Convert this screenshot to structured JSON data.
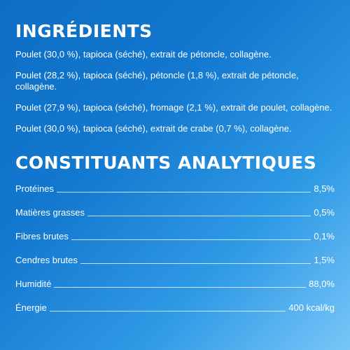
{
  "ingredients_title": "INGRÉDIENTS",
  "ingredients": [
    "Poulet (30,0 %), tapioca (séché), extrait de pétoncle, collagène.",
    "Poulet (28,2 %), tapioca (séché), pétoncle (1,8 %), extrait de pétoncle, collagène.",
    "Poulet (27,9 %), tapioca (séché), fromage (2,1 %), extrait de poulet, collagène.",
    "Poulet (30,0 %), tapioca (séché), extrait de crabe (0,7 %), collagène."
  ],
  "constituents_title": "CONSTITUANTS ANALYTIQUES",
  "constituents": [
    {
      "label": "Protéines",
      "value": "8,5%"
    },
    {
      "label": "Matières grasses",
      "value": "0,5%"
    },
    {
      "label": "Fibres brutes",
      "value": "0,1%"
    },
    {
      "label": "Cendres brutes",
      "value": "1,5%"
    },
    {
      "label": "Humidité",
      "value": "88,0%"
    },
    {
      "label": "Énergie",
      "value": "400 kcal/kg"
    }
  ],
  "colors": {
    "background": "#1277cf",
    "background_light": "#79c6f8",
    "text": "#ffffff"
  }
}
